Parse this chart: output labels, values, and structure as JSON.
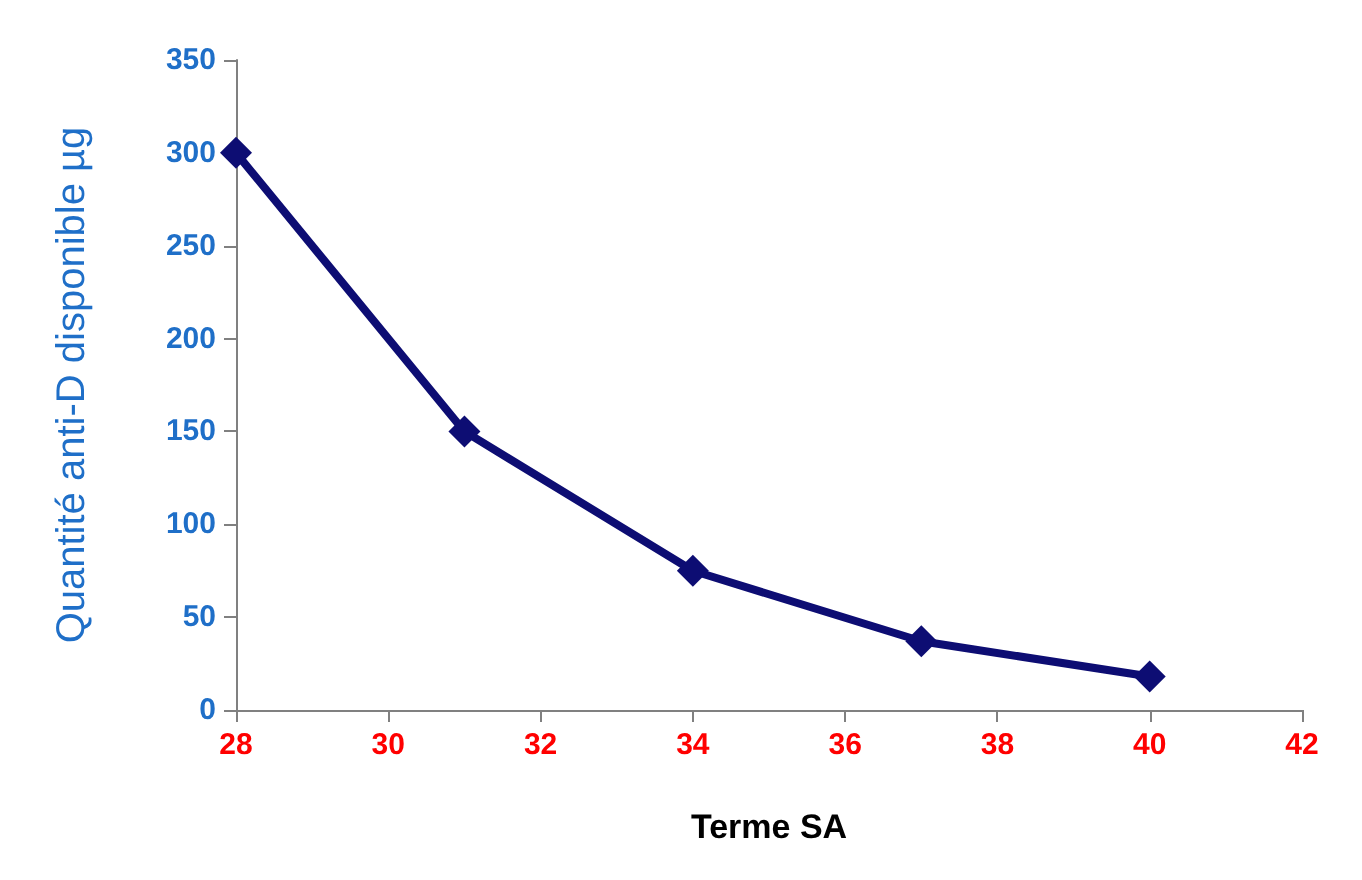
{
  "chart_data": {
    "type": "line",
    "xlabel": "Terme SA",
    "ylabel": "Quantité anti-D disponible µg",
    "x": [
      28,
      31,
      34,
      37,
      40
    ],
    "series": [
      {
        "color": "#0d0d73",
        "values": [
          300,
          150,
          75,
          37,
          18
        ]
      }
    ],
    "xlim": [
      28,
      42
    ],
    "xticks": [
      28,
      30,
      32,
      34,
      36,
      38,
      40,
      42
    ],
    "ylim": [
      0,
      350
    ],
    "yticks": [
      0,
      50,
      100,
      150,
      200,
      250,
      300,
      350
    ],
    "grid": false,
    "marker": "diamond",
    "line_style": "solid"
  }
}
